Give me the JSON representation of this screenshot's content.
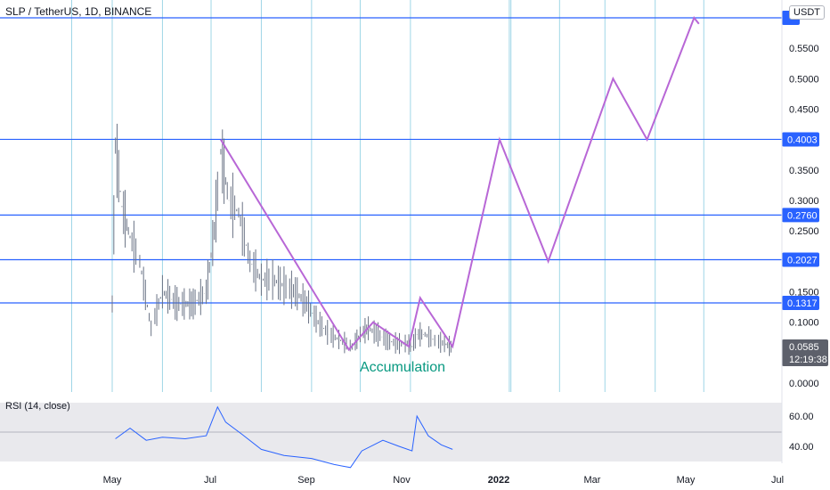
{
  "header": {
    "title": "SLP / TetherUS, 1D, BINANCE",
    "currency": "USDT"
  },
  "price_axis": {
    "ticks": [
      "0.5500",
      "0.5000",
      "0.4500",
      "0.3500",
      "0.3000",
      "0.2500",
      "0.1500",
      "0.1000",
      "0.0000"
    ],
    "level_labels": [
      "0.4003",
      "0.2760",
      "0.2027",
      "0.1317"
    ],
    "current_price": "0.0585",
    "countdown": "12:19:38"
  },
  "time_axis": {
    "labels": [
      "May",
      "Jul",
      "Sep",
      "Nov",
      "2022",
      "Mar",
      "May",
      "Jul"
    ]
  },
  "annotation": {
    "text": "Accumulation"
  },
  "rsi": {
    "label": "RSI (14, close)",
    "ticks": [
      "60.00",
      "40.00"
    ]
  },
  "colors": {
    "level_line": "#2962ff",
    "label_bg": "#2962ff",
    "projection": "#b867d6",
    "annotation": "#089981",
    "rsi_line": "#2962ff",
    "rsi_band": "#e9e9ed",
    "candle": "#6a7385",
    "vgrid": "#9fd6e6",
    "current_bg": "#5d606b"
  },
  "chart_data": {
    "type": "line",
    "title": "SLP / TetherUS, 1D, BINANCE",
    "xlabel": "",
    "ylabel": "",
    "ylim": [
      0,
      0.6
    ],
    "grid": true,
    "levels": [
      0.6,
      0.4003,
      0.276,
      0.2027,
      0.1317
    ],
    "series": [
      {
        "name": "price",
        "x": [
          "2021-05-01",
          "2021-05-03",
          "2021-05-07",
          "2021-05-12",
          "2021-05-18",
          "2021-05-25",
          "2021-06-01",
          "2021-06-10",
          "2021-06-20",
          "2021-06-28",
          "2021-07-03",
          "2021-07-07",
          "2021-07-12",
          "2021-07-18",
          "2021-07-25",
          "2021-08-01",
          "2021-08-08",
          "2021-08-15",
          "2021-08-22",
          "2021-08-29",
          "2021-09-05",
          "2021-09-12",
          "2021-09-19",
          "2021-09-26",
          "2021-10-01",
          "2021-10-06",
          "2021-10-12",
          "2021-10-18",
          "2021-10-24",
          "2021-10-30",
          "2021-11-02",
          "2021-11-05",
          "2021-11-10",
          "2021-11-16",
          "2021-11-22",
          "2021-11-27"
        ],
        "values": [
          0.13,
          0.39,
          0.29,
          0.24,
          0.2,
          0.09,
          0.15,
          0.13,
          0.13,
          0.15,
          0.25,
          0.38,
          0.3,
          0.28,
          0.2,
          0.17,
          0.17,
          0.16,
          0.15,
          0.13,
          0.1,
          0.08,
          0.07,
          0.06,
          0.08,
          0.09,
          0.08,
          0.07,
          0.065,
          0.065,
          0.06,
          0.08,
          0.08,
          0.07,
          0.065,
          0.0585
        ]
      },
      {
        "name": "projection",
        "x": [
          "2021-07-07",
          "2021-09-24",
          "2021-10-09",
          "2021-10-31",
          "2021-11-07",
          "2021-11-27",
          "2021-12-26",
          "2022-01-25",
          "2022-03-06",
          "2022-03-27",
          "2022-04-25",
          "2022-04-28"
        ],
        "values": [
          0.4,
          0.055,
          0.1,
          0.06,
          0.14,
          0.06,
          0.4,
          0.2,
          0.5,
          0.4,
          0.6,
          0.59
        ]
      }
    ],
    "rsi": {
      "x": [
        "2021-05-03",
        "2021-05-12",
        "2021-05-22",
        "2021-06-01",
        "2021-06-15",
        "2021-06-28",
        "2021-07-05",
        "2021-07-10",
        "2021-07-20",
        "2021-08-01",
        "2021-08-15",
        "2021-09-01",
        "2021-09-15",
        "2021-09-25",
        "2021-10-02",
        "2021-10-15",
        "2021-10-25",
        "2021-11-02",
        "2021-11-05",
        "2021-11-12",
        "2021-11-20",
        "2021-11-27"
      ],
      "values": [
        45,
        52,
        44,
        46,
        45,
        47,
        66,
        56,
        48,
        38,
        34,
        32,
        28,
        26,
        37,
        44,
        40,
        37,
        60,
        47,
        41,
        38
      ]
    }
  }
}
